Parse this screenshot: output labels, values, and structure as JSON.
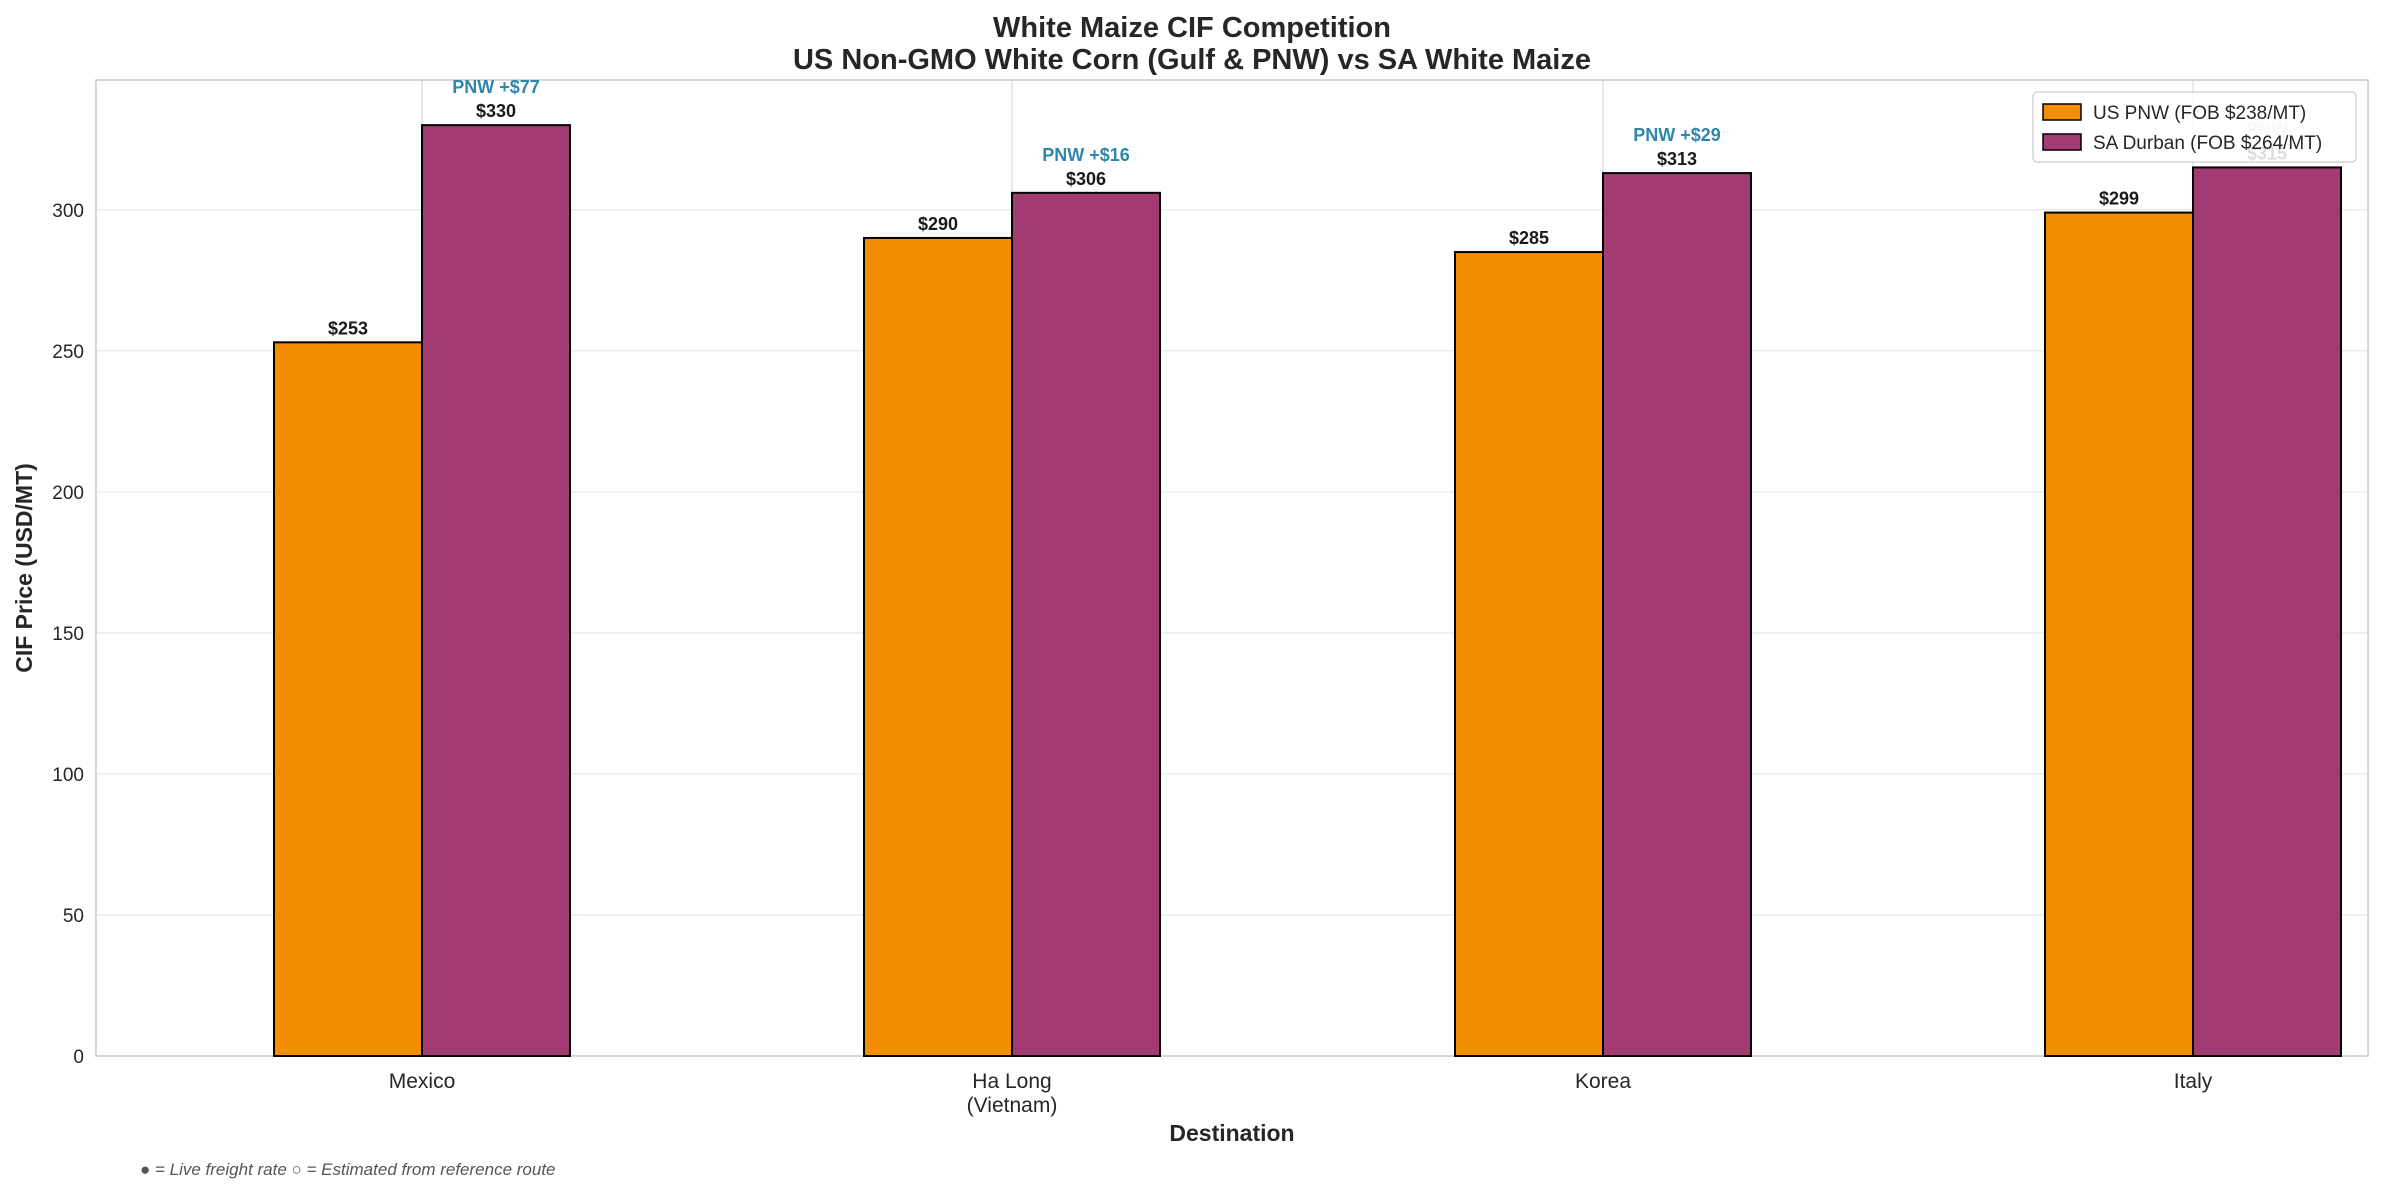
{
  "chart_data": {
    "type": "bar",
    "title_line1": "White Maize CIF Competition",
    "title_line2": "US Non-GMO White Corn (Gulf & PNW) vs SA White Maize",
    "xlabel": "Destination",
    "ylabel": "CIF Price (USD/MT)",
    "ylim": [
      0,
      346
    ],
    "yticks": [
      0,
      50,
      100,
      150,
      200,
      250,
      300
    ],
    "grid": true,
    "legend_position": "top-right",
    "categories": [
      [
        "Mexico"
      ],
      [
        "Ha Long",
        "(Vietnam)"
      ],
      [
        "Korea"
      ],
      [
        "Italy"
      ]
    ],
    "series": [
      {
        "name": "US PNW (FOB $238/MT)",
        "color": "#F28E00",
        "values": [
          253,
          290,
          285,
          299
        ],
        "labels": [
          "$253",
          "$290",
          "$285",
          "$299"
        ]
      },
      {
        "name": "SA Durban (FOB $264/MT)",
        "color": "#A23B72",
        "values": [
          330,
          306,
          313,
          315
        ],
        "labels": [
          "$330",
          "$306",
          "$313",
          "$315"
        ]
      }
    ],
    "annotations": [
      {
        "text": "PNW +$77",
        "color": "#2E86AB",
        "opacity": 1
      },
      {
        "text": "PNW +$16",
        "color": "#2E86AB",
        "opacity": 1
      },
      {
        "text": "PNW +$29",
        "color": "#2E86AB",
        "opacity": 1
      },
      {
        "text": "PNW",
        "color": "#AAAAAA",
        "opacity": 0.6
      }
    ],
    "footnote": "● = Live freight rate  ○ = Estimated from reference route"
  }
}
